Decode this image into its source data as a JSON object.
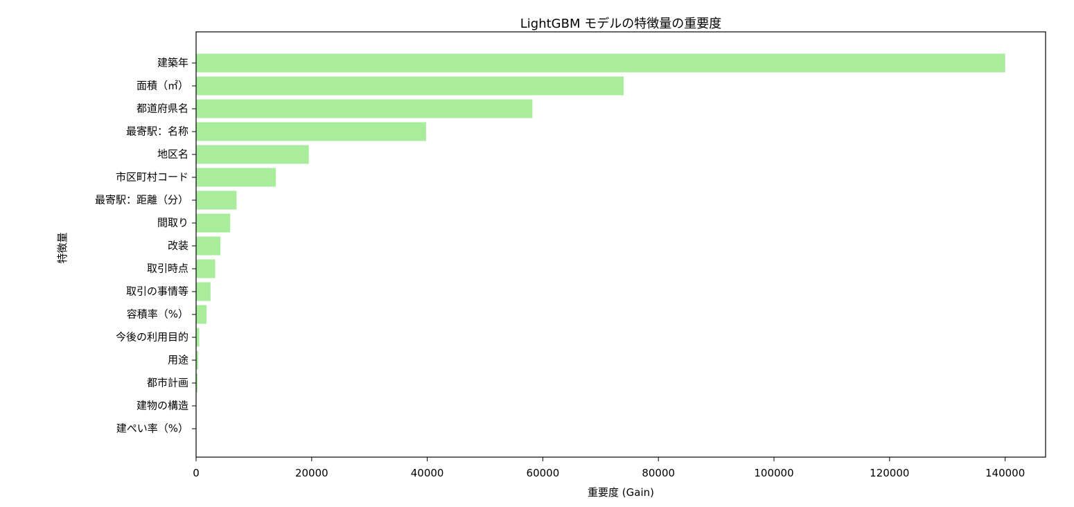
{
  "chart_data": {
    "type": "bar",
    "orientation": "horizontal",
    "title": "LightGBM モデルの特徴量の重要度",
    "xlabel": "重要度 (Gain)",
    "ylabel": "特徴量",
    "xlim": [
      0,
      147000
    ],
    "xticks": [
      0,
      20000,
      40000,
      60000,
      80000,
      100000,
      120000,
      140000
    ],
    "bar_color": "#a8ec9c",
    "grid": false,
    "categories": [
      "建築年",
      "面積（㎡）",
      "都道府県名",
      "最寄駅：名称",
      "地区名",
      "市区町村コード",
      "最寄駅：距離（分）",
      "間取り",
      "改装",
      "取引時点",
      "取引の事情等",
      "容積率（%）",
      "今後の利用目的",
      "用途",
      "都市計画",
      "建物の構造",
      "建ぺい率（%）"
    ],
    "values": [
      140000,
      74000,
      58200,
      39800,
      19500,
      13800,
      7000,
      5900,
      4200,
      3300,
      2500,
      1800,
      550,
      350,
      250,
      50,
      20
    ]
  }
}
